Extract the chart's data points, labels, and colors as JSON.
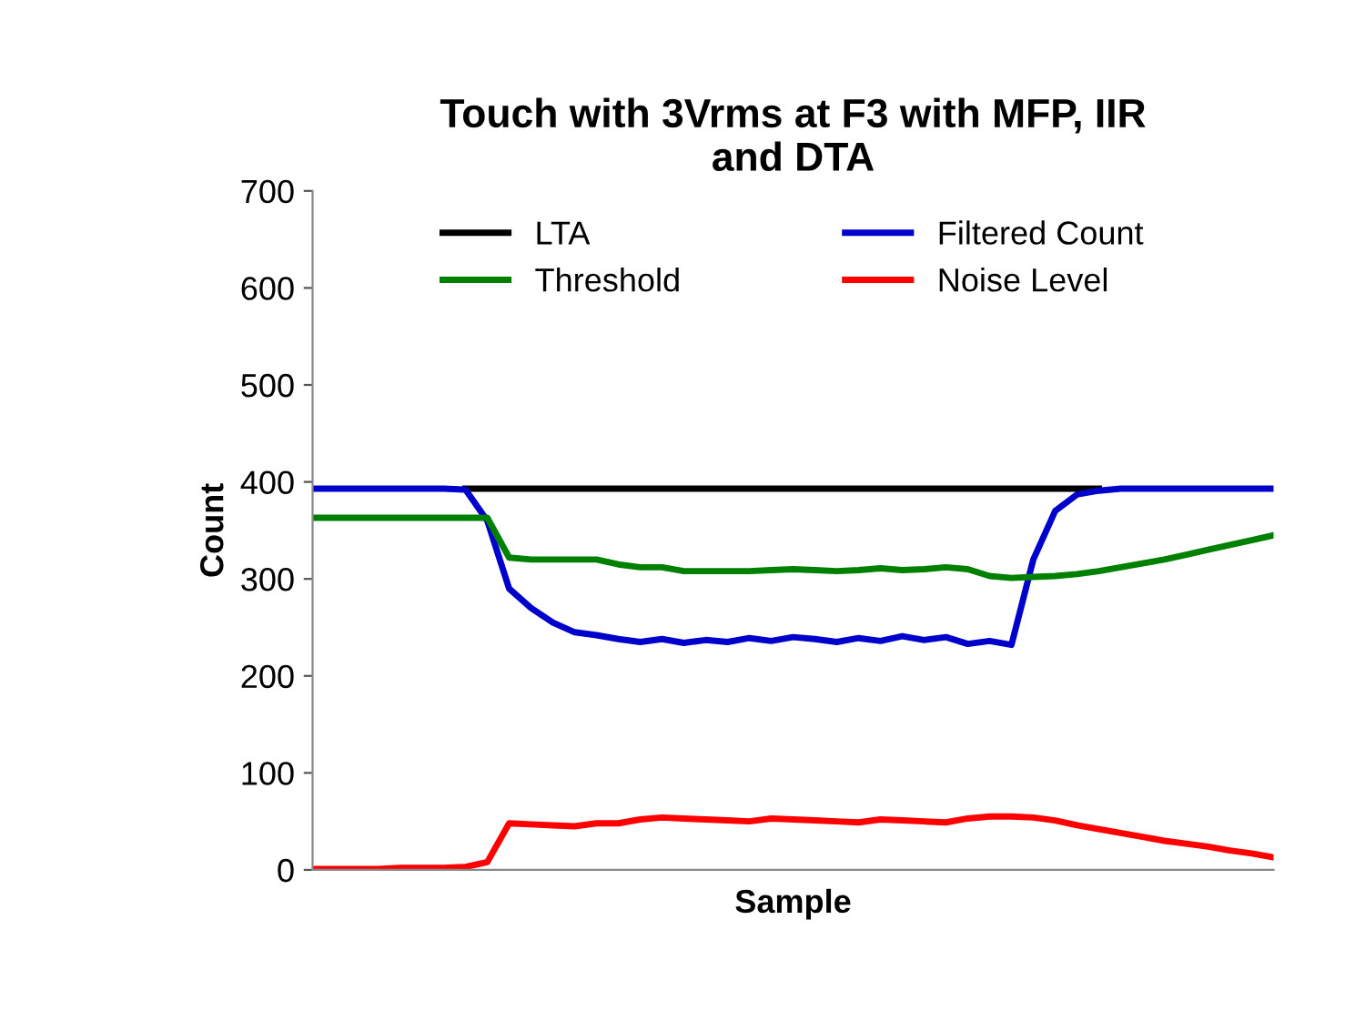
{
  "chart_data": {
    "type": "line",
    "title": "Touch with 3Vrms at F3 with MFP, IIR\nand DTA",
    "xlabel": "Sample",
    "ylabel": "Count",
    "categories": [
      null,
      null,
      null,
      null,
      null,
      null,
      null,
      null,
      null,
      null,
      null,
      null,
      null,
      null,
      null,
      null,
      null,
      null,
      null,
      null,
      null,
      null,
      null,
      null,
      null,
      null,
      null,
      null,
      null,
      null,
      null,
      null,
      null,
      null,
      null,
      null,
      null,
      null,
      null,
      null,
      null,
      null,
      null,
      null,
      null
    ],
    "series": [
      {
        "name": "LTA",
        "color": "#000000",
        "values": [
          null,
          null,
          null,
          null,
          null,
          null,
          null,
          393,
          393,
          393,
          393,
          393,
          393,
          393,
          393,
          393,
          393,
          393,
          393,
          393,
          393,
          393,
          393,
          393,
          393,
          393,
          393,
          393,
          393,
          393,
          393,
          393,
          393,
          393,
          393,
          393,
          393,
          null,
          null,
          null,
          null,
          null,
          null,
          null,
          null
        ]
      },
      {
        "name": "Filtered Count",
        "color": "#0000cc",
        "values": [
          393,
          393,
          393,
          393,
          393,
          393,
          393,
          392,
          360,
          290,
          270,
          255,
          245,
          242,
          238,
          235,
          238,
          234,
          237,
          235,
          239,
          236,
          240,
          238,
          235,
          239,
          236,
          241,
          237,
          240,
          233,
          236,
          232,
          320,
          370,
          387,
          391,
          393,
          393,
          393,
          393,
          393,
          393,
          393,
          393
        ]
      },
      {
        "name": "Threshold",
        "color": "#008000",
        "values": [
          363,
          363,
          363,
          363,
          363,
          363,
          363,
          363,
          363,
          322,
          320,
          320,
          320,
          320,
          315,
          312,
          312,
          308,
          308,
          308,
          308,
          309,
          310,
          309,
          308,
          309,
          311,
          309,
          310,
          312,
          310,
          303,
          301,
          302,
          303,
          305,
          308,
          312,
          316,
          320,
          325,
          330,
          335,
          340,
          345
        ]
      },
      {
        "name": "Noise Level",
        "color": "#ff0000",
        "values": [
          1,
          1,
          1,
          1,
          2,
          2,
          2,
          3,
          8,
          48,
          47,
          46,
          45,
          48,
          48,
          52,
          54,
          53,
          52,
          51,
          50,
          53,
          52,
          51,
          50,
          49,
          52,
          51,
          50,
          49,
          53,
          55,
          55,
          54,
          51,
          46,
          42,
          38,
          34,
          30,
          27,
          24,
          20,
          17,
          13
        ]
      }
    ],
    "ylim": [
      0,
      700
    ],
    "yticks": [
      0,
      100,
      200,
      300,
      400,
      500,
      600,
      700
    ],
    "legend": "top",
    "grid": false,
    "marker": "none",
    "line_style": "solid"
  }
}
